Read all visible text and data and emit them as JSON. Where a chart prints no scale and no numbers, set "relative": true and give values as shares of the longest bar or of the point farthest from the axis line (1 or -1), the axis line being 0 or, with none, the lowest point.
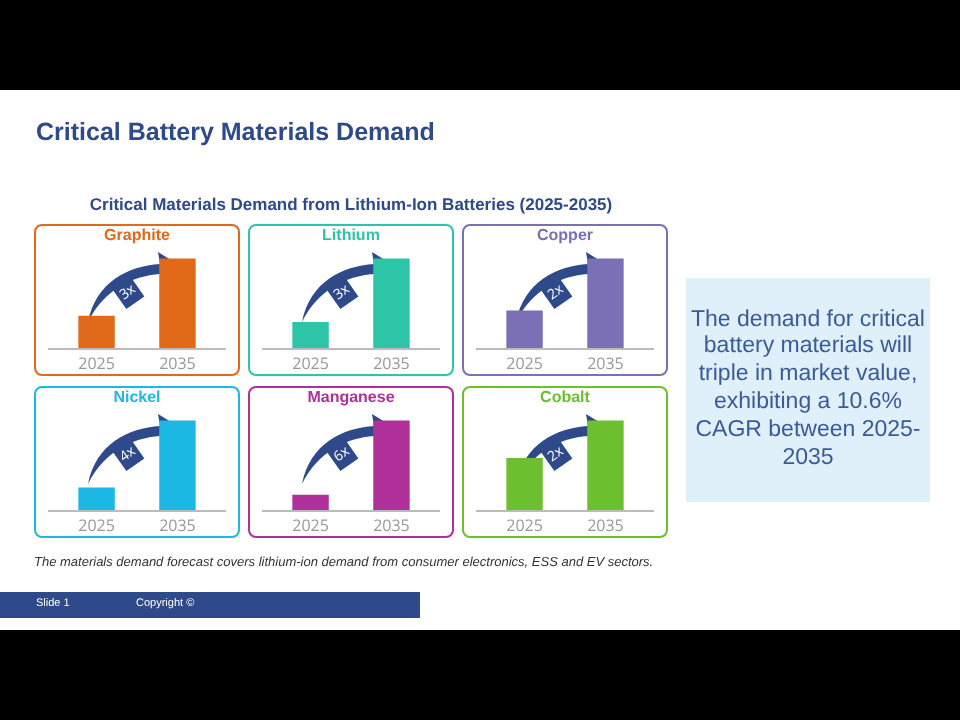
{
  "chart_data": [
    {
      "type": "bar",
      "relative": true,
      "title": "Graphite",
      "categories": [
        "2025",
        "2035"
      ],
      "values": [
        0.36,
        1
      ],
      "color": "#e0691a",
      "annotations": [
        "3x"
      ]
    },
    {
      "type": "bar",
      "relative": true,
      "title": "Lithium",
      "categories": [
        "2025",
        "2035"
      ],
      "values": [
        0.29,
        1
      ],
      "color": "#2ec4a8",
      "annotations": [
        "3x"
      ]
    },
    {
      "type": "bar",
      "relative": true,
      "title": "Copper",
      "categories": [
        "2025",
        "2035"
      ],
      "values": [
        0.42,
        1
      ],
      "color": "#7b6fb5",
      "annotations": [
        "2x"
      ]
    },
    {
      "type": "bar",
      "relative": true,
      "title": "Nickel",
      "categories": [
        "2025",
        "2035"
      ],
      "values": [
        0.25,
        1
      ],
      "color": "#1cb8e4",
      "annotations": [
        "4x"
      ]
    },
    {
      "type": "bar",
      "relative": true,
      "title": "Manganese",
      "categories": [
        "2025",
        "2035"
      ],
      "values": [
        0.17,
        1
      ],
      "color": "#b0309a",
      "annotations": [
        "6x"
      ]
    },
    {
      "type": "bar",
      "relative": true,
      "title": "Cobalt",
      "categories": [
        "2025",
        "2035"
      ],
      "values": [
        0.58,
        1
      ],
      "color": "#6cbf2f",
      "annotations": [
        "2x"
      ]
    },
    {
      "type": "other",
      "title": "Critical Battery Materials Demand",
      "subtitle": "Critical Materials Demand from Lithium-Ion Batteries (2025-2035)",
      "annotations": [
        "The demand for critical battery materials will triple in market value, exhibiting a 10.6% CAGR between 2025-2035",
        "The materials demand forecast covers lithium-ion demand from consumer electronics, ESS and EV sectors.",
        "Slide 1",
        "Copyright ©"
      ]
    }
  ]
}
